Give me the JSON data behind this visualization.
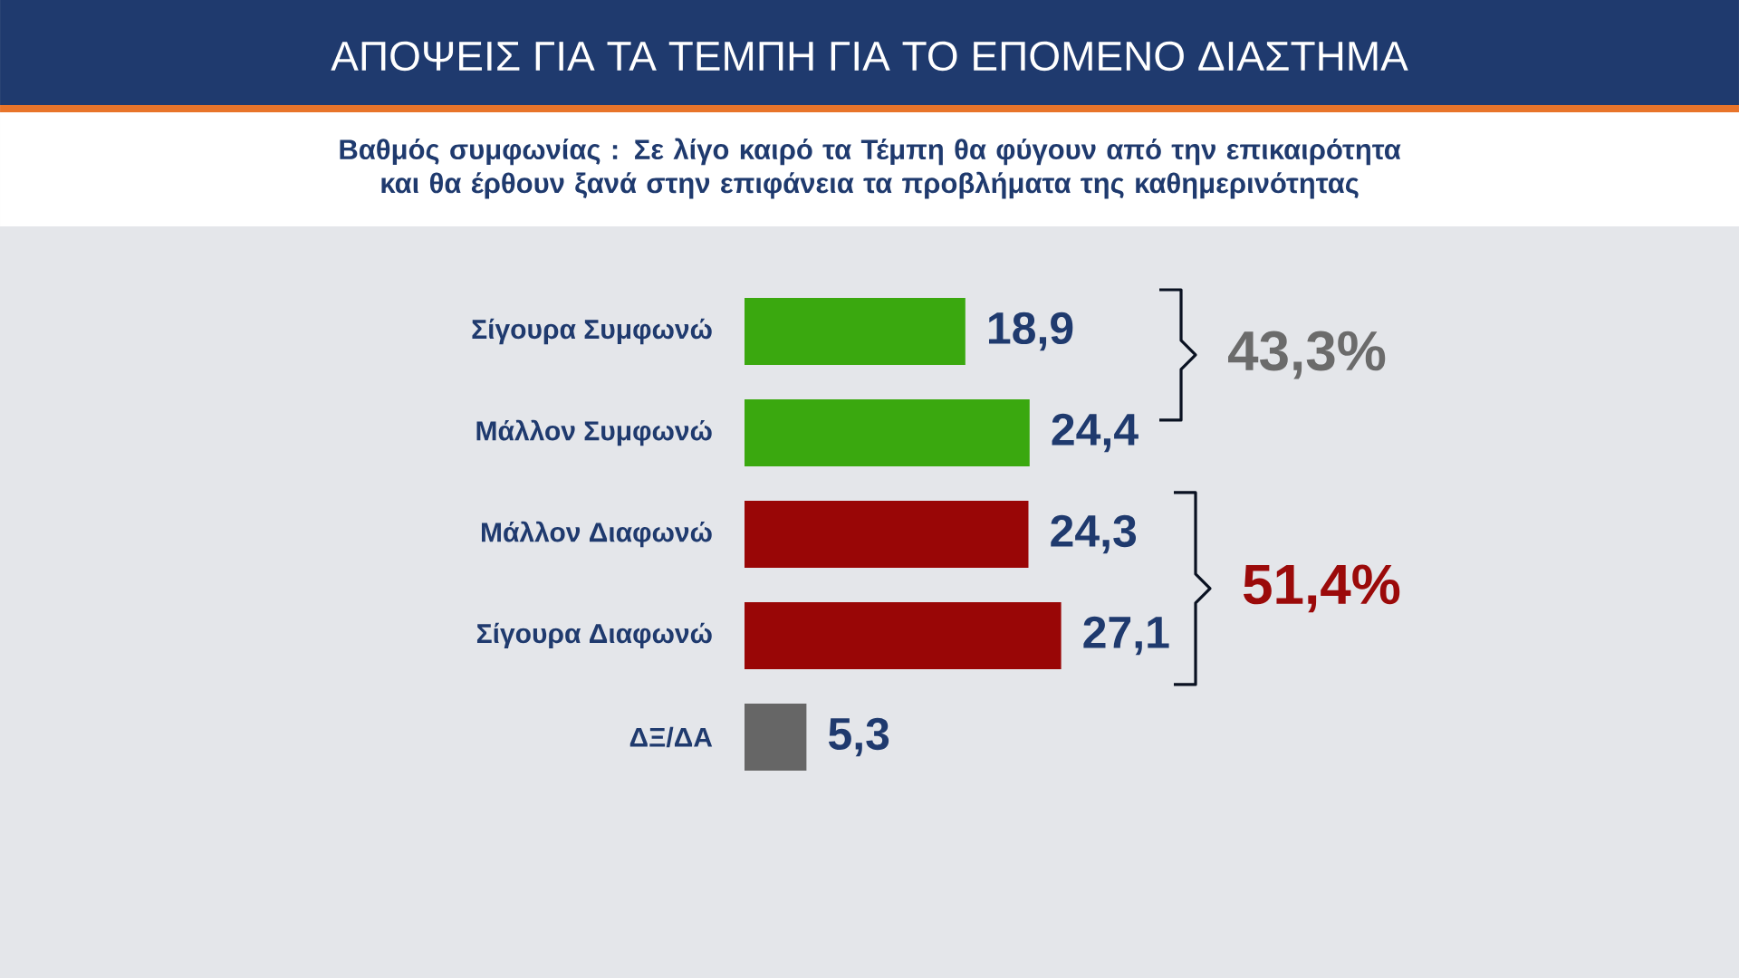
{
  "chart_data": {
    "type": "bar",
    "orientation": "horizontal",
    "title": "ΑΠΟΨΕΙΣ ΓΙΑ ΤΑ ΤΕΜΠΗ ΓΙΑ ΤΟ ΕΠΟΜΕΝΟ ΔΙΑΣΤΗΜΑ",
    "subtitle": "Βαθμός συμφωνίας : Σε λίγο καιρό τα Τέμπη θα φύγουν από την επικαιρότητα και θα έρθουν ξανά στην επιφάνεια τα προβλήματα της καθημερινότητας",
    "categories": [
      "Σίγουρα Συμφωνώ",
      "Μάλλον Συμφωνώ",
      "Μάλλον Διαφωνώ",
      "Σίγουρα Διαφωνώ",
      "ΔΞ/ΔΑ"
    ],
    "values": [
      18.9,
      24.4,
      24.3,
      27.1,
      5.3
    ],
    "value_labels": [
      "18,9",
      "24,4",
      "24,3",
      "27,1",
      "5,3"
    ],
    "colors": [
      "#3aa80f",
      "#3aa80f",
      "#990606",
      "#990606",
      "#666666"
    ],
    "tick_labels": "y",
    "annotations": [
      "43,3%",
      "51,4%"
    ]
  }
}
